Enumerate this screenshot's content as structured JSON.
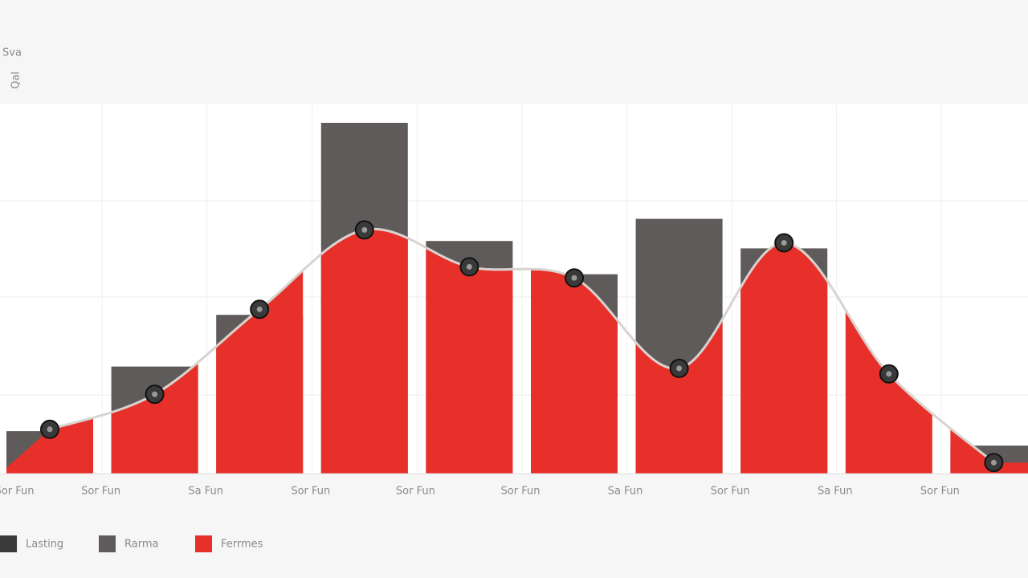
{
  "chart_data": {
    "type": "combo",
    "title": "Sva",
    "y_label": "Qal",
    "categories": [
      "Sor Fun",
      "Sor Fun",
      "Sa Fun",
      "Sor Fun",
      "Sor Fun",
      "Sor Fun",
      "Sa Fun",
      "Sor Fun",
      "Sa Fun",
      "Sor Fun"
    ],
    "ylim": [
      0,
      100
    ],
    "series": [
      {
        "name": "Lasting",
        "type": "line",
        "color": "#3a3a3a",
        "values": [
          12,
          21.5,
          44.5,
          66,
          56,
          53,
          28.5,
          62.5,
          27,
          3
        ]
      },
      {
        "name": "Rarma",
        "type": "bar",
        "color": "#5f5b5b",
        "values": [
          11.5,
          29,
          43,
          95,
          63,
          54,
          69,
          61,
          null,
          7.6
        ]
      },
      {
        "name": "Ferrmes",
        "type": "area",
        "color": "#e8302a",
        "values": [
          12,
          21.5,
          44.5,
          66,
          56,
          53,
          28.5,
          62.5,
          27,
          3
        ]
      }
    ]
  }
}
